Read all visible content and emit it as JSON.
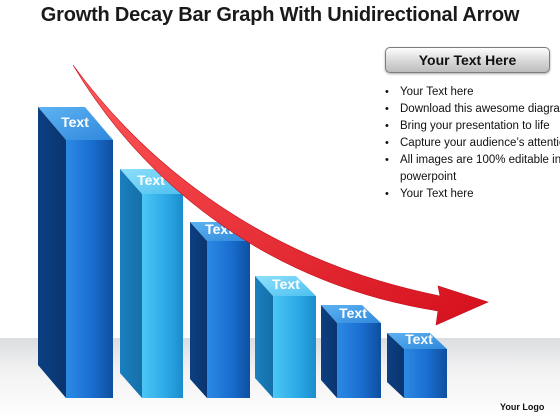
{
  "title": "Growth Decay Bar Graph With Unidirectional Arrow",
  "bar_labels": [
    "Text",
    "Text",
    "Text",
    "Text",
    "Text",
    "Text"
  ],
  "side_panel": {
    "header": "Your Text Here",
    "bullets": [
      "Your Text here",
      "Download this awesome diagram",
      "Bring your presentation to life",
      "Capture your audience’s attention",
      "All images are 100% editable in powerpoint",
      "Your Text here"
    ]
  },
  "logo_text": "Your Logo",
  "colors": {
    "bar_dark": "#1563b8",
    "bar_light": "#2fb0ea",
    "arrow": "#e8202a"
  },
  "icons": {
    "bullet": "bullet-dot-icon",
    "arrow": "arrow-right-curved-icon"
  }
}
